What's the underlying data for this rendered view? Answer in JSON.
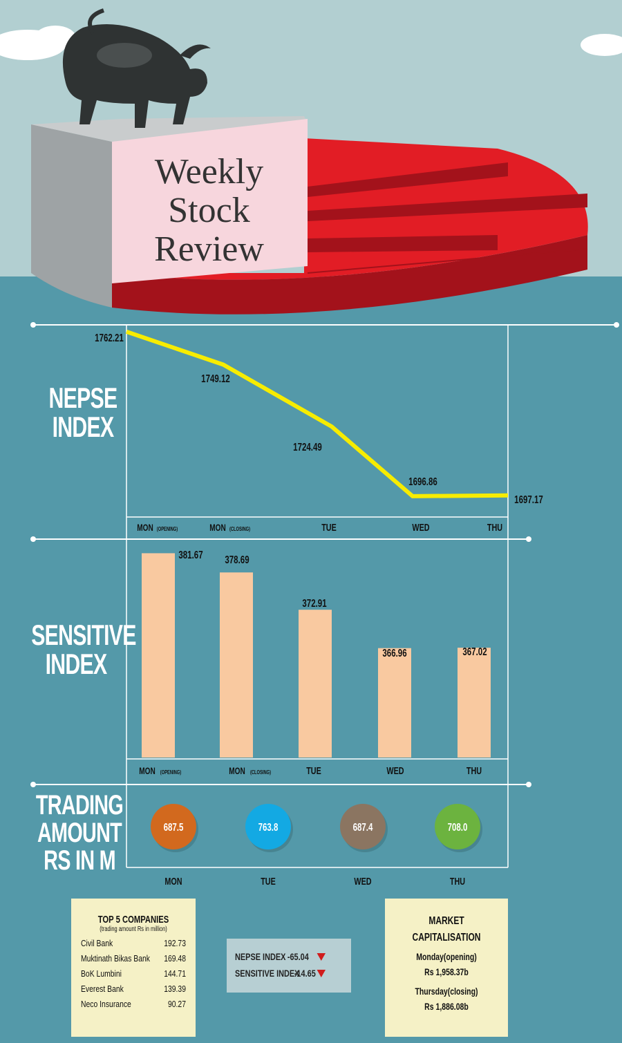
{
  "title": {
    "line1": "Weekly",
    "line2": "Stock",
    "line3": "Review"
  },
  "colors": {
    "sky": "#b2cfd1",
    "background": "#5499a9",
    "pie_red": "#e21d25",
    "nepse_line": "#f7ec00",
    "bars": "#f9c9a0",
    "box": "#f5f1c6"
  },
  "chart_data": [
    {
      "type": "line",
      "title": "NEPSE INDEX",
      "title_lines": [
        "NEPSE",
        "INDEX"
      ],
      "categories": [
        "MON (OPENING)",
        "MON (CLOSING)",
        "TUE",
        "WED",
        "THU"
      ],
      "category_main": [
        "MON",
        "MON",
        "TUE",
        "WED",
        "THU"
      ],
      "category_sub": [
        "(OPENING)",
        "(CLOSING)",
        "",
        "",
        ""
      ],
      "values": [
        1762.21,
        1749.12,
        1724.49,
        1696.86,
        1697.17
      ],
      "value_labels": [
        "1762.21",
        "1749.12",
        "1724.49",
        "1696.86",
        "1697.17"
      ],
      "ylim": [
        1696,
        1763
      ],
      "grid": false,
      "line_color": "#f7ec00"
    },
    {
      "type": "bar",
      "title": "SENSITIVE INDEX",
      "title_lines": [
        "SENSITIVE",
        "INDEX"
      ],
      "categories": [
        "MON (OPENING)",
        "MON (CLOSING)",
        "TUE",
        "WED",
        "THU"
      ],
      "category_main": [
        "MON",
        "MON",
        "TUE",
        "WED",
        "THU"
      ],
      "category_sub": [
        "(OPENING)",
        "(CLOSING)",
        "",
        "",
        ""
      ],
      "values": [
        381.67,
        378.69,
        372.91,
        366.96,
        367.02
      ],
      "value_labels": [
        "381.67",
        "378.69",
        "372.91",
        "366.96",
        "367.02"
      ],
      "ylim": [
        350,
        383
      ],
      "grid": false,
      "bar_color": "#f9c9a0"
    },
    {
      "type": "bar",
      "title": "TRADING AMOUNT RS IN M",
      "title_lines": [
        "TRADING",
        "AMOUNT",
        "RS IN M"
      ],
      "categories": [
        "MON",
        "TUE",
        "WED",
        "THU"
      ],
      "values": [
        687.5,
        763.8,
        687.4,
        708.0
      ],
      "value_labels": [
        "687.5",
        "763.8",
        "687.4",
        "708.0"
      ],
      "marker_colors": [
        "#d2691e",
        "#13a9e3",
        "#8b7561",
        "#6cb33f"
      ]
    }
  ],
  "top5": {
    "title": "TOP 5 COMPANIES",
    "subtitle": "(trading amount Rs in million)",
    "rows": [
      {
        "name": "Civil Bank",
        "value": "192.73"
      },
      {
        "name": "Muktinath Bikas Bank",
        "value": "169.48"
      },
      {
        "name": "BoK Lumbini",
        "value": "144.71"
      },
      {
        "name": "Everest Bank",
        "value": "139.39"
      },
      {
        "name": "Neco Insurance",
        "value": "90.27"
      }
    ]
  },
  "changes": {
    "nepse_label": "NEPSE INDEX",
    "nepse_value": "-65.04",
    "sensitive_label": "SENSITIVE INDEX",
    "sensitive_value": "-14.65"
  },
  "market_cap": {
    "title_line1": "MARKET",
    "title_line2": "CAPITALISATION",
    "opening_label": "Monday(opening)",
    "opening_value": "Rs 1,958.37b",
    "closing_label": "Thursday(closing)",
    "closing_value": "Rs 1,886.08b"
  }
}
